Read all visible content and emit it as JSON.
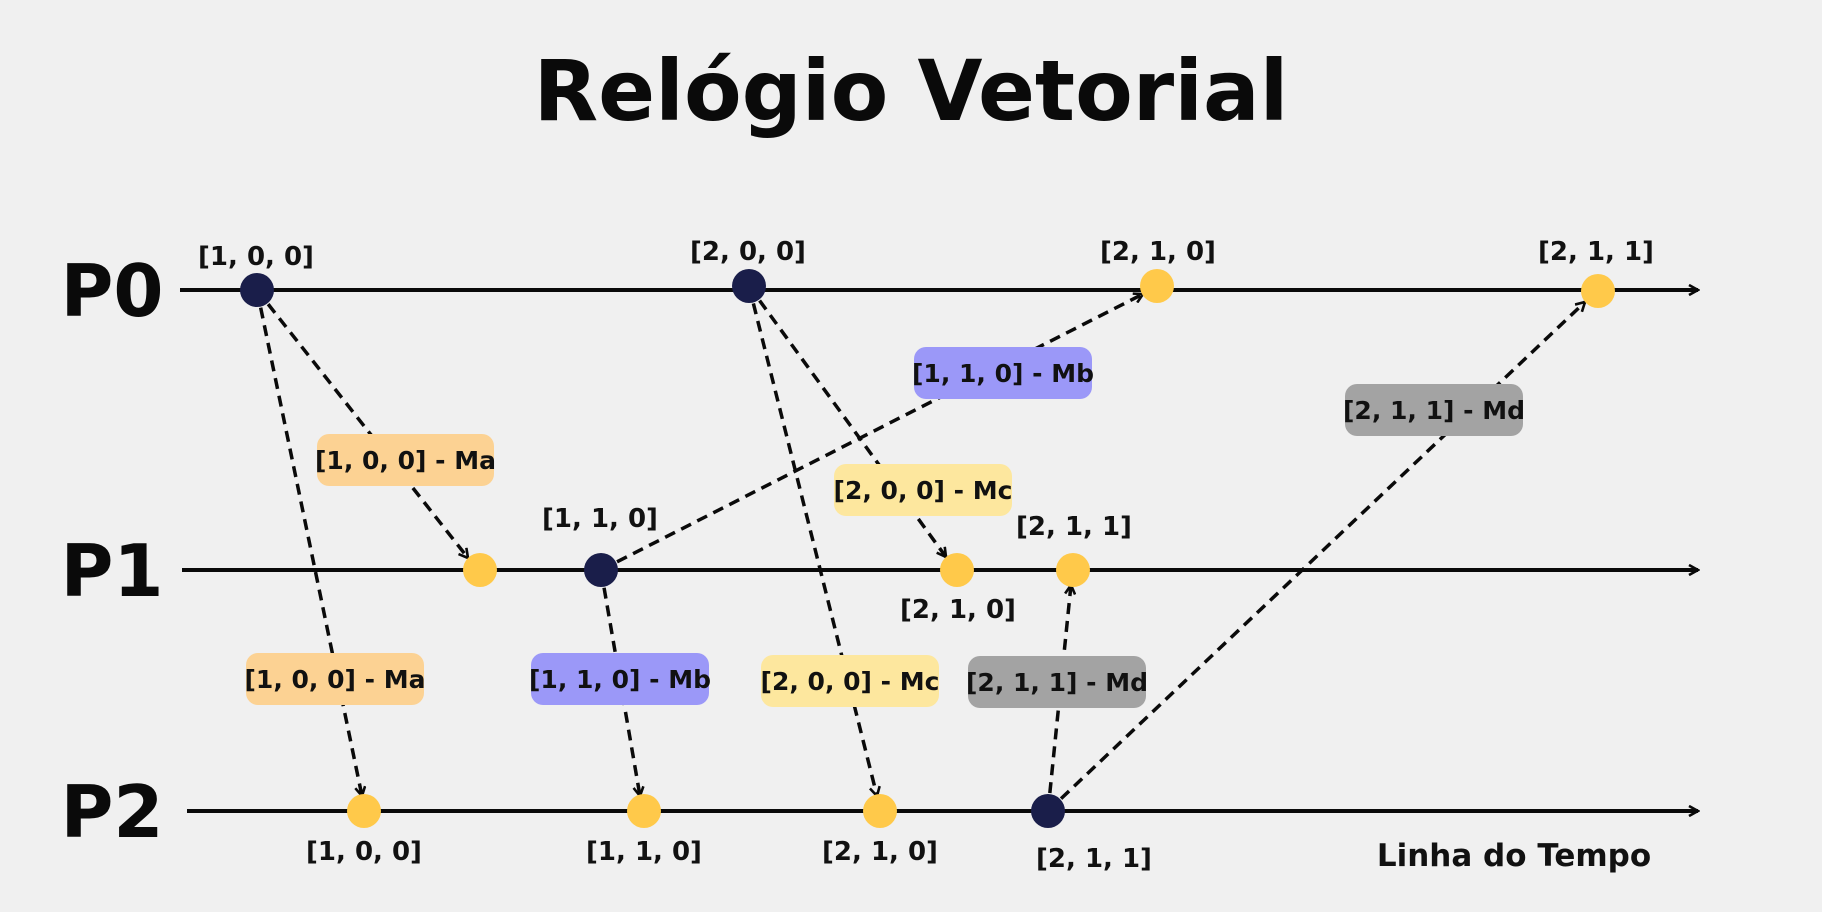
{
  "title": "Relógio Vetorial",
  "footer_label": "Linha do Tempo",
  "colors": {
    "send_event": "#1a1e4a",
    "receive_event": "#ffc94a",
    "Ma": "#fcd293",
    "Mb": "#9b98f8",
    "Mc": "#fde79e",
    "Md": "#a3a3a3",
    "background": "#f0f0f0"
  },
  "processes": [
    "P0",
    "P1",
    "P2"
  ],
  "events": [
    {
      "id": "p0-e1",
      "process": "P0",
      "kind": "send",
      "clock": "[1, 0, 0]"
    },
    {
      "id": "p0-e2",
      "process": "P0",
      "kind": "send",
      "clock": "[2, 0, 0]"
    },
    {
      "id": "p0-e3",
      "process": "P0",
      "kind": "receive",
      "clock": "[2, 1, 0]"
    },
    {
      "id": "p0-e4",
      "process": "P0",
      "kind": "receive",
      "clock": "[2, 1, 1]"
    },
    {
      "id": "p1-e1",
      "process": "P1",
      "kind": "receive",
      "clock": ""
    },
    {
      "id": "p1-e2",
      "process": "P1",
      "kind": "send",
      "clock": "[1, 1, 0]"
    },
    {
      "id": "p1-e3",
      "process": "P1",
      "kind": "receive",
      "clock": "[2, 1, 0]"
    },
    {
      "id": "p1-e4",
      "process": "P1",
      "kind": "receive",
      "clock": "[2, 1, 1]"
    },
    {
      "id": "p2-e1",
      "process": "P2",
      "kind": "receive",
      "clock": "[1, 0, 0]"
    },
    {
      "id": "p2-e2",
      "process": "P2",
      "kind": "receive",
      "clock": "[1, 1, 0]"
    },
    {
      "id": "p2-e3",
      "process": "P2",
      "kind": "receive",
      "clock": "[2, 1, 0]"
    },
    {
      "id": "p2-e4",
      "process": "P2",
      "kind": "send",
      "clock": "[2, 1, 1]"
    }
  ],
  "messages": [
    {
      "from": "p0-e1",
      "to": "p1-e1",
      "label": "[1, 0, 0] - Ma",
      "color_key": "Ma"
    },
    {
      "from": "p0-e1",
      "to": "p2-e1",
      "label": "[1, 0, 0] - Ma",
      "color_key": "Ma"
    },
    {
      "from": "p1-e2",
      "to": "p0-e3",
      "label": "[1, 1, 0] - Mb",
      "color_key": "Mb"
    },
    {
      "from": "p1-e2",
      "to": "p2-e2",
      "label": "[1, 1, 0] - Mb",
      "color_key": "Mb"
    },
    {
      "from": "p0-e2",
      "to": "p1-e3",
      "label": "[2, 0, 0] - Mc",
      "color_key": "Mc"
    },
    {
      "from": "p0-e2",
      "to": "p2-e3",
      "label": "[2, 0, 0] - Mc",
      "color_key": "Mc"
    },
    {
      "from": "p2-e4",
      "to": "p1-e4",
      "label": "[2, 1, 1] - Md",
      "color_key": "Md"
    },
    {
      "from": "p2-e4",
      "to": "p0-e4",
      "label": "[2, 1, 1] - Md",
      "color_key": "Md"
    }
  ]
}
